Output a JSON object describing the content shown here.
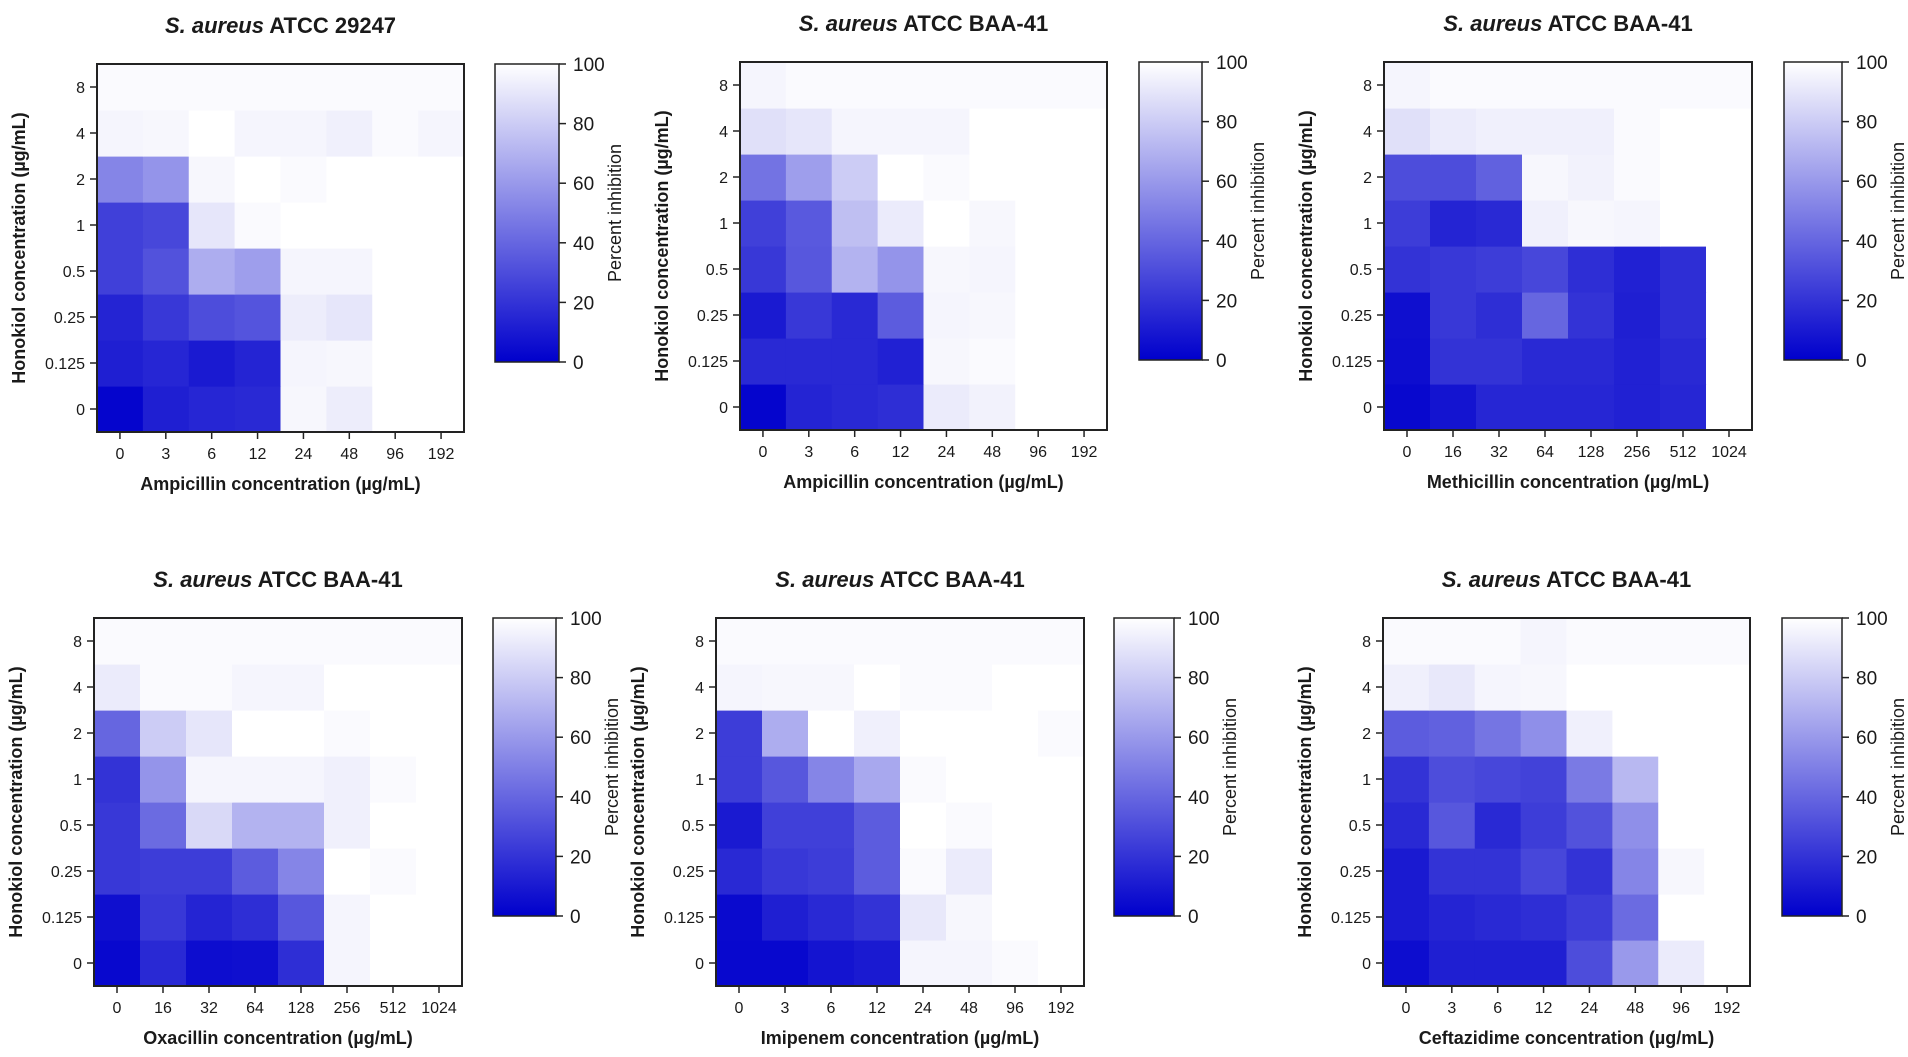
{
  "colors": {
    "low": "#0000cc",
    "high": "#ffffff"
  },
  "colorbar": {
    "label": "Percent inhibition",
    "ticks": [
      "0",
      "20",
      "40",
      "60",
      "80",
      "100"
    ],
    "min": 0,
    "max": 100
  },
  "chart_data": [
    {
      "type": "heatmap",
      "title_italic": "S. aureus",
      "title_rest": " ATCC 29247",
      "xlabel": "Ampicillin concentration (µg/mL)",
      "ylabel": "Honokiol concentration (µg/mL)",
      "x_categories": [
        "0",
        "3",
        "6",
        "12",
        "24",
        "48",
        "96",
        "192"
      ],
      "y_categories": [
        "0",
        "0.125",
        "0.25",
        "0.5",
        "1",
        "2",
        "4",
        "8"
      ],
      "values": [
        [
          2,
          12,
          15,
          16,
          97,
          93,
          100,
          100
        ],
        [
          12,
          15,
          10,
          14,
          96,
          97,
          100,
          100
        ],
        [
          14,
          22,
          30,
          33,
          93,
          90,
          100,
          100
        ],
        [
          25,
          32,
          68,
          62,
          96,
          96,
          100,
          100
        ],
        [
          25,
          28,
          90,
          98,
          100,
          100,
          100,
          100
        ],
        [
          52,
          58,
          97,
          100,
          98,
          100,
          100,
          100
        ],
        [
          96,
          97,
          100,
          96,
          96,
          94,
          98,
          96
        ],
        [
          98,
          98,
          98,
          98,
          98,
          98,
          98,
          98
        ]
      ]
    },
    {
      "type": "heatmap",
      "title_italic": "S. aureus",
      "title_rest": " ATCC BAA-41",
      "xlabel": "Ampicillin concentration (µg/mL)",
      "ylabel": "Honokiol concentration (µg/mL)",
      "x_categories": [
        "0",
        "3",
        "6",
        "12",
        "24",
        "48",
        "96",
        "192"
      ],
      "y_categories": [
        "0",
        "0.125",
        "0.25",
        "0.5",
        "1",
        "2",
        "4",
        "8"
      ],
      "values": [
        [
          2,
          14,
          16,
          18,
          92,
          95,
          100,
          100
        ],
        [
          16,
          16,
          16,
          13,
          97,
          98,
          100,
          100
        ],
        [
          10,
          22,
          16,
          36,
          96,
          97,
          100,
          100
        ],
        [
          22,
          34,
          70,
          58,
          97,
          96,
          100,
          100
        ],
        [
          25,
          35,
          75,
          92,
          100,
          97,
          100,
          100
        ],
        [
          45,
          62,
          80,
          100,
          98,
          100,
          100,
          100
        ],
        [
          88,
          90,
          96,
          96,
          96,
          100,
          100,
          100
        ],
        [
          96,
          98,
          98,
          98,
          98,
          98,
          98,
          98
        ]
      ]
    },
    {
      "type": "heatmap",
      "title_italic": "S. aureus",
      "title_rest": " ATCC BAA-41",
      "xlabel": "Methicillin concentration (µg/mL)",
      "ylabel": "Honokiol concentration (µg/mL)",
      "x_categories": [
        "0",
        "16",
        "32",
        "64",
        "128",
        "256",
        "512",
        "1024"
      ],
      "y_categories": [
        "0",
        "0.125",
        "0.25",
        "0.5",
        "1",
        "2",
        "4",
        "8"
      ],
      "values": [
        [
          3,
          8,
          15,
          15,
          15,
          13,
          15,
          100
        ],
        [
          5,
          20,
          20,
          16,
          16,
          13,
          16,
          100
        ],
        [
          6,
          22,
          18,
          40,
          20,
          12,
          18,
          100
        ],
        [
          20,
          22,
          24,
          28,
          18,
          13,
          18,
          100
        ],
        [
          24,
          14,
          16,
          94,
          97,
          96,
          100,
          100
        ],
        [
          30,
          30,
          38,
          97,
          95,
          98,
          100,
          100
        ],
        [
          88,
          92,
          94,
          94,
          94,
          98,
          100,
          100
        ],
        [
          96,
          98,
          98,
          98,
          98,
          98,
          98,
          98
        ]
      ]
    },
    {
      "type": "heatmap",
      "title_italic": "S. aureus",
      "title_rest": " ATCC BAA-41",
      "xlabel": "Oxacillin concentration (µg/mL)",
      "ylabel": "Honokiol concentration (µg/mL)",
      "x_categories": [
        "0",
        "16",
        "32",
        "64",
        "128",
        "256",
        "512",
        "1024"
      ],
      "y_categories": [
        "0",
        "0.125",
        "0.25",
        "0.5",
        "1",
        "2",
        "4",
        "8"
      ],
      "values": [
        [
          3,
          16,
          5,
          6,
          18,
          96,
          100,
          100
        ],
        [
          6,
          22,
          14,
          18,
          34,
          96,
          100,
          100
        ],
        [
          22,
          24,
          24,
          36,
          52,
          100,
          98,
          100
        ],
        [
          22,
          42,
          85,
          70,
          70,
          94,
          100,
          100
        ],
        [
          20,
          58,
          96,
          96,
          96,
          94,
          98,
          100
        ],
        [
          40,
          80,
          90,
          100,
          100,
          98,
          100,
          100
        ],
        [
          92,
          98,
          98,
          96,
          96,
          100,
          100,
          100
        ],
        [
          98,
          98,
          98,
          98,
          98,
          98,
          98,
          98
        ]
      ]
    },
    {
      "type": "heatmap",
      "title_italic": "S. aureus",
      "title_rest": " ATCC BAA-41",
      "xlabel": "Imipenem concentration (µg/mL)",
      "ylabel": "Honokiol concentration (µg/mL)",
      "x_categories": [
        "0",
        "3",
        "6",
        "12",
        "24",
        "48",
        "96",
        "192"
      ],
      "y_categories": [
        "0",
        "0.125",
        "0.25",
        "0.5",
        "1",
        "2",
        "4",
        "8"
      ],
      "values": [
        [
          3,
          3,
          8,
          10,
          96,
          96,
          98,
          100
        ],
        [
          4,
          12,
          16,
          20,
          91,
          97,
          100,
          100
        ],
        [
          16,
          22,
          24,
          36,
          98,
          92,
          100,
          100
        ],
        [
          10,
          25,
          25,
          36,
          100,
          98,
          100,
          100
        ],
        [
          24,
          34,
          52,
          66,
          98,
          100,
          100,
          100
        ],
        [
          24,
          68,
          100,
          94,
          100,
          100,
          100,
          98
        ],
        [
          96,
          97,
          97,
          100,
          98,
          98,
          100,
          100
        ],
        [
          98,
          98,
          98,
          98,
          98,
          98,
          98,
          98
        ]
      ]
    },
    {
      "type": "heatmap",
      "title_italic": "S. aureus",
      "title_rest": " ATCC BAA-41",
      "xlabel": "Ceftazidime concentration (µg/mL)",
      "ylabel": "Honokiol concentration (µg/mL)",
      "x_categories": [
        "0",
        "3",
        "6",
        "12",
        "24",
        "48",
        "96",
        "192"
      ],
      "y_categories": [
        "0",
        "0.125",
        "0.25",
        "0.5",
        "1",
        "2",
        "4",
        "8"
      ],
      "values": [
        [
          5,
          12,
          12,
          12,
          30,
          60,
          92,
          100
        ],
        [
          10,
          14,
          16,
          18,
          24,
          42,
          100,
          100
        ],
        [
          10,
          20,
          20,
          28,
          20,
          52,
          97,
          100
        ],
        [
          16,
          34,
          16,
          24,
          32,
          56,
          100,
          100
        ],
        [
          20,
          30,
          28,
          26,
          48,
          72,
          100,
          100
        ],
        [
          36,
          38,
          46,
          56,
          94,
          100,
          100,
          100
        ],
        [
          94,
          91,
          96,
          97,
          100,
          100,
          100,
          100
        ],
        [
          98,
          98,
          98,
          96,
          98,
          98,
          98,
          98
        ]
      ]
    }
  ]
}
